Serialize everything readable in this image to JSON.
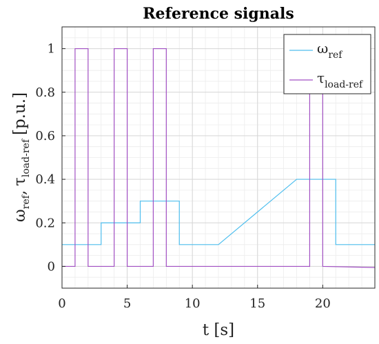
{
  "chart_data": {
    "type": "line",
    "title": "Reference signals",
    "xlabel": "t [s]",
    "ylabel": "ω_ref, τ_load-ref [p.u.]",
    "xlim": [
      0,
      24
    ],
    "ylim": [
      -0.1,
      1.1
    ],
    "xticks": [
      0,
      5,
      10,
      15,
      20
    ],
    "yticks": [
      0,
      0.2,
      0.4,
      0.6,
      0.8,
      1
    ],
    "xtick_labels": [
      "0",
      "5",
      "10",
      "15",
      "20"
    ],
    "ytick_labels": [
      "0",
      "0.2",
      "0.4",
      "0.6",
      "0.8",
      "1"
    ],
    "grid": true,
    "legend_position": "top-right",
    "series": [
      {
        "name": "ω_ref",
        "color": "#4dbeee",
        "x": [
          0,
          3,
          3,
          6,
          6,
          9,
          9,
          12,
          18,
          21,
          21,
          24
        ],
        "y": [
          0.1,
          0.1,
          0.2,
          0.2,
          0.3,
          0.3,
          0.1,
          0.1,
          0.4,
          0.4,
          0.1,
          0.1
        ]
      },
      {
        "name": "τ_load-ref",
        "color": "#a14fc3",
        "x": [
          0,
          1,
          1,
          2,
          2,
          4,
          4,
          5,
          5,
          7,
          7,
          8,
          8,
          19,
          19,
          20,
          20,
          24
        ],
        "y": [
          0,
          0,
          1,
          1,
          0,
          0,
          1,
          1,
          0,
          0,
          1,
          1,
          0,
          0,
          1,
          1,
          0,
          -0.005
        ]
      }
    ]
  },
  "legend": {
    "omega_main": "ω",
    "omega_sub": "ref",
    "tau_main": "τ",
    "tau_sub": "load-ref"
  },
  "axis_label_parts": {
    "omega_main": "ω",
    "omega_sub": "ref",
    "comma": ",",
    "tau_main": "τ",
    "tau_sub": "load-ref",
    "unit": "[p.u.]"
  }
}
